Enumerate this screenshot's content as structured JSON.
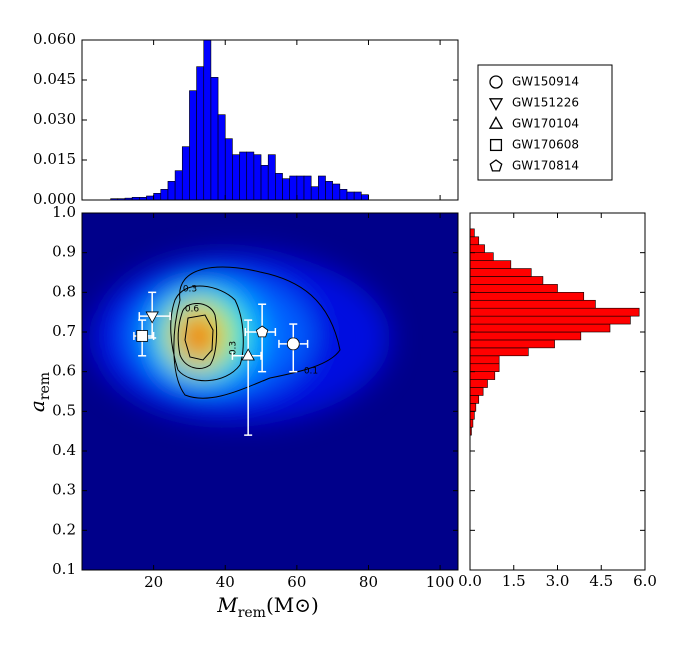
{
  "chart_data": [
    {
      "type": "histogram",
      "color": "#0000ff",
      "bins": [
        8,
        10,
        12,
        14,
        16,
        18,
        20,
        22,
        24,
        26,
        28,
        30,
        32,
        34,
        36,
        38,
        40,
        42,
        44,
        46,
        48,
        50,
        52,
        54,
        56,
        58,
        60,
        62,
        64,
        66,
        68,
        70,
        72,
        74,
        76,
        78,
        80
      ],
      "values": [
        0.0005,
        0.0005,
        0.0007,
        0.001,
        0.001,
        0.0015,
        0.0025,
        0.004,
        0.007,
        0.011,
        0.02,
        0.041,
        0.05,
        0.06,
        0.046,
        0.032,
        0.023,
        0.017,
        0.018,
        0.018,
        0.017,
        0.013,
        0.017,
        0.01,
        0.008,
        0.009,
        0.009,
        0.009,
        0.005,
        0.009,
        0.007,
        0.006,
        0.004,
        0.003,
        0.003,
        0.002
      ],
      "xlim": [
        0,
        105
      ],
      "ylim": [
        0,
        0.06
      ],
      "yticks": [
        {
          "value": 0,
          "label": "0.000"
        },
        {
          "value": 0.015,
          "label": "0.015"
        },
        {
          "value": 0.03,
          "label": "0.030"
        },
        {
          "value": 0.045,
          "label": "0.045"
        },
        {
          "value": 0.06,
          "label": "0.060"
        }
      ]
    },
    {
      "type": "scatter",
      "xlabel": {
        "symbol": "M",
        "sub": "rem",
        "unit": "(M⊙)"
      },
      "ylabel": {
        "symbol": "a",
        "sub": "rem"
      },
      "xlim": [
        0,
        105
      ],
      "ylim": [
        0.1,
        1.0
      ],
      "xticks": [
        20,
        40,
        60,
        80,
        100
      ],
      "yticks": [
        0.1,
        0.2,
        0.3,
        0.4,
        0.5,
        0.6,
        0.7,
        0.8,
        0.9,
        {
          "value": 1.0,
          "label": "1.0"
        }
      ],
      "contour_labels": [
        "0.3",
        "0.6",
        "0.3",
        "0.1"
      ],
      "series": [
        {
          "name": "GW150914",
          "marker": "circle",
          "color": "#ffffff",
          "x": [
            59
          ],
          "y": [
            0.67
          ],
          "x_range": [
            [
              55,
              63
            ]
          ],
          "y_range": [
            [
              0.6,
              0.72
            ]
          ]
        },
        {
          "name": "GW151226",
          "marker": "triangle-down",
          "color": "#ffffff",
          "x": [
            19.6
          ],
          "y": [
            0.74
          ],
          "x_range": [
            [
              16,
              24.6
            ]
          ],
          "y_range": [
            [
              0.685,
              0.8
            ]
          ]
        },
        {
          "name": "GW170104",
          "marker": "triangle-up",
          "color": "#ffffff",
          "x": [
            46.4
          ],
          "y": [
            0.64
          ],
          "x_range": [
            [
              42,
              50
            ]
          ],
          "y_range": [
            [
              0.44,
              0.73
            ]
          ]
        },
        {
          "name": "GW170608",
          "marker": "square",
          "color": "#ffffff",
          "x": [
            16.8
          ],
          "y": [
            0.69
          ],
          "x_range": [
            [
              14.5,
              20
            ]
          ],
          "y_range": [
            [
              0.64,
              0.73
            ]
          ]
        },
        {
          "name": "GW170814",
          "marker": "pentagon",
          "color": "#ffffff",
          "x": [
            50.3
          ],
          "y": [
            0.7
          ],
          "x_range": [
            [
              45.6,
              54
            ]
          ],
          "y_range": [
            [
              0.6,
              0.77
            ]
          ]
        }
      ]
    },
    {
      "type": "histogram",
      "orientation": "horizontal",
      "color": "#ff0000",
      "bins": [
        0.44,
        0.46,
        0.48,
        0.5,
        0.52,
        0.54,
        0.56,
        0.58,
        0.6,
        0.62,
        0.64,
        0.66,
        0.68,
        0.7,
        0.72,
        0.74,
        0.76,
        0.78,
        0.8,
        0.82,
        0.84,
        0.86,
        0.88,
        0.9,
        0.92,
        0.94,
        0.96
      ],
      "values": [
        0.05,
        0.1,
        0.15,
        0.2,
        0.3,
        0.45,
        0.6,
        0.85,
        1.0,
        1.0,
        2.0,
        2.9,
        3.8,
        4.8,
        5.5,
        5.8,
        4.3,
        3.9,
        3.0,
        2.5,
        2.1,
        1.4,
        0.8,
        0.5,
        0.3,
        0.15
      ],
      "xlim": [
        0,
        6
      ],
      "ylim": [
        0.1,
        1.0
      ],
      "xticks": [
        {
          "value": 0,
          "label": "0.0"
        },
        {
          "value": 1.5,
          "label": "1.5"
        },
        {
          "value": 3,
          "label": "3.0"
        },
        {
          "value": 4.5,
          "label": "4.5"
        },
        {
          "value": 6,
          "label": "6.0"
        }
      ]
    }
  ]
}
